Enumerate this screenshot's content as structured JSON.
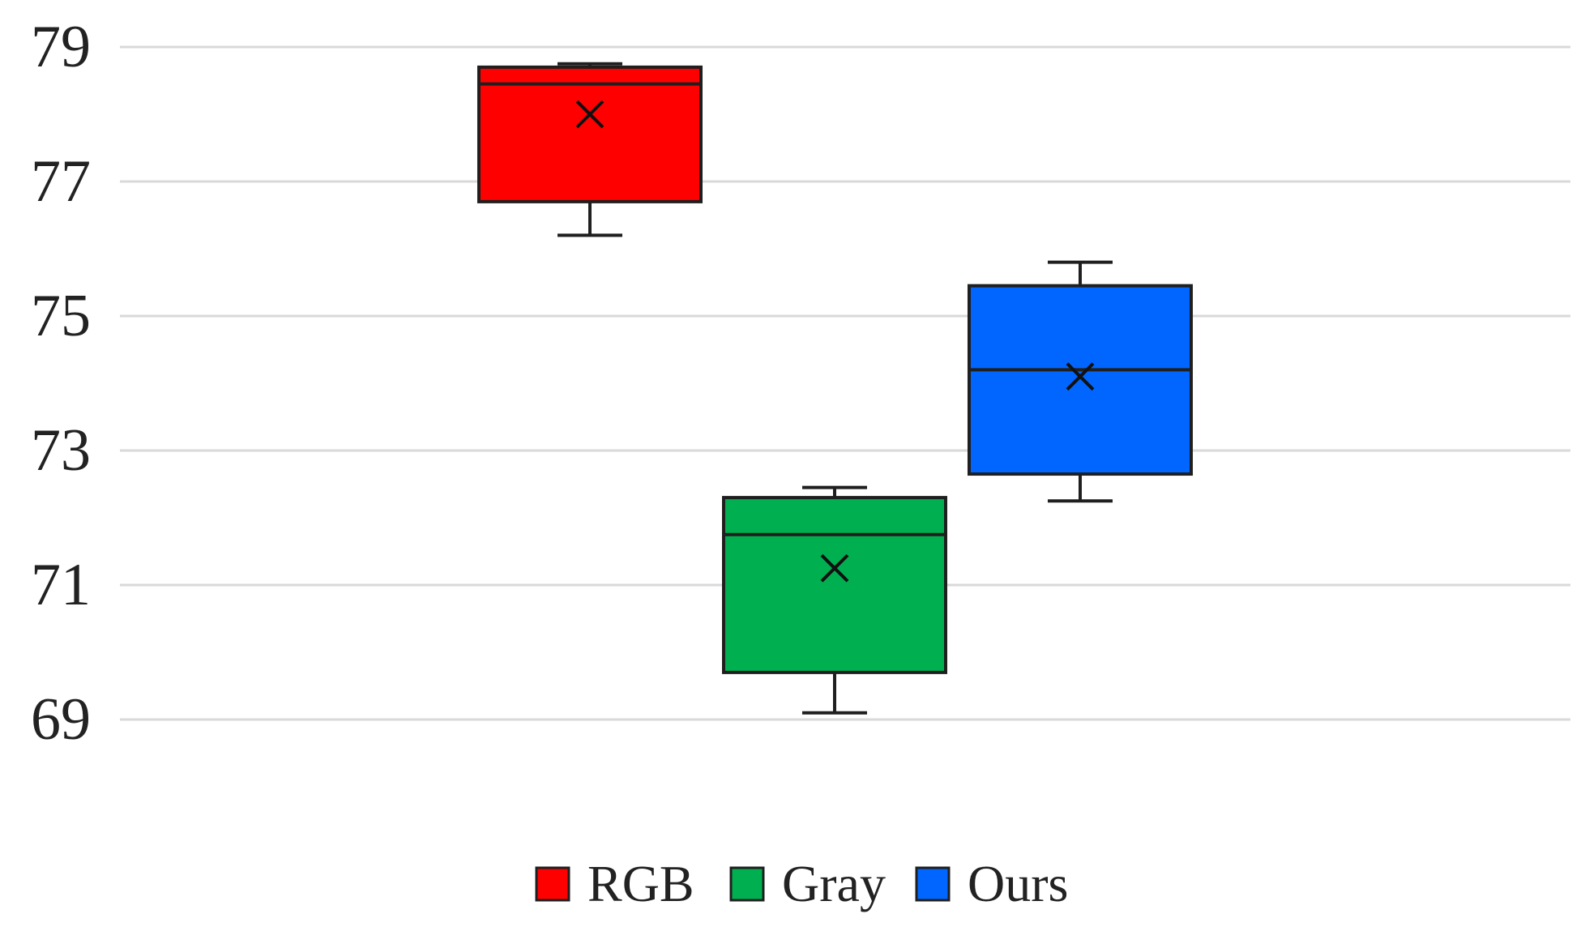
{
  "chart_data": {
    "type": "box",
    "title": "",
    "xlabel": "",
    "ylabel": "",
    "ylim": [
      69,
      79
    ],
    "yticks": [
      "69",
      "71",
      "73",
      "75",
      "77",
      "79"
    ],
    "grid": true,
    "legend_position": "bottom",
    "series": [
      {
        "name": "RGB",
        "color": "#ff0000",
        "min": 76.2,
        "q1": 76.7,
        "median": 78.45,
        "q3": 78.7,
        "max": 78.75,
        "mean": 78.0
      },
      {
        "name": "Gray",
        "color": "#00b050",
        "min": 69.1,
        "q1": 69.7,
        "median": 71.75,
        "q3": 72.3,
        "max": 72.45,
        "mean": 71.25
      },
      {
        "name": "Ours",
        "color": "#0066ff",
        "min": 72.25,
        "q1": 72.65,
        "median": 74.2,
        "q3": 75.45,
        "max": 75.8,
        "mean": 74.1
      }
    ]
  }
}
